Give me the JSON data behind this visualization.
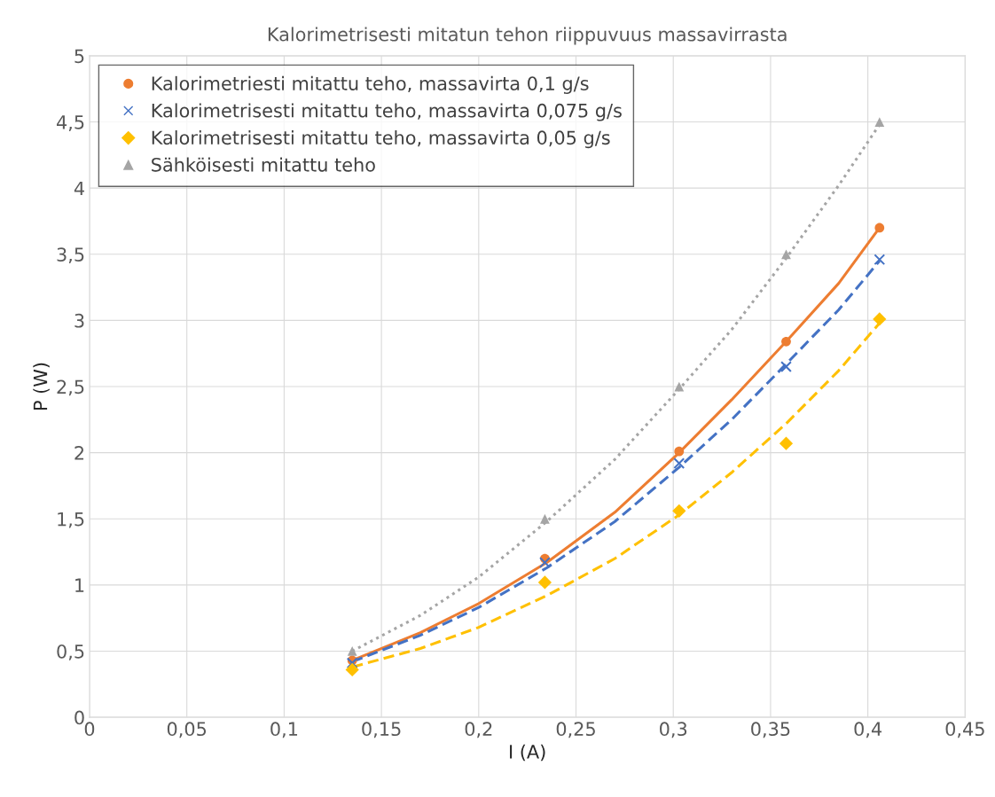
{
  "chart_data": {
    "type": "scatter",
    "title": "Kalorimetrisesti mitatun tehon riippuvuus massavirrasta",
    "xlabel": "I (A)",
    "ylabel": "P (W)",
    "x": [
      0.135,
      0.234,
      0.303,
      0.358,
      0.406
    ],
    "series": [
      {
        "name": "Kalorimetriesti mitattu teho, massavirta 0,1 g/s",
        "color": "#ed7d31",
        "marker": "circle",
        "values": [
          0.43,
          1.2,
          2.01,
          2.84,
          3.7
        ]
      },
      {
        "name": "Kalorimetrisesti mitattu teho, massavirta 0,075 g/s",
        "color": "#4472c4",
        "marker": "cross",
        "values": [
          0.41,
          1.17,
          1.92,
          2.65,
          3.46
        ]
      },
      {
        "name": "Kalorimetrisesti mitattu teho, massavirta 0,05 g/s",
        "color": "#ffc000",
        "marker": "diamond",
        "values": [
          0.36,
          1.02,
          1.56,
          2.07,
          3.01
        ]
      },
      {
        "name": "Sähköisesti mitattu teho",
        "color": "#a5a5a5",
        "marker": "triangle",
        "values": [
          0.5,
          1.5,
          2.5,
          3.5,
          4.5
        ]
      },
      {
        "type": "line",
        "color": "#ed7d31",
        "line_style": "solid",
        "x": [
          0.135,
          0.17,
          0.2,
          0.235,
          0.27,
          0.303,
          0.33,
          0.358,
          0.385,
          0.406
        ],
        "values": [
          0.43,
          0.64,
          0.86,
          1.17,
          1.55,
          2.0,
          2.4,
          2.84,
          3.28,
          3.7
        ]
      },
      {
        "type": "line",
        "color": "#4472c4",
        "line_style": "dashed",
        "x": [
          0.135,
          0.17,
          0.2,
          0.235,
          0.27,
          0.303,
          0.33,
          0.358,
          0.385,
          0.406
        ],
        "values": [
          0.42,
          0.62,
          0.83,
          1.13,
          1.48,
          1.89,
          2.25,
          2.67,
          3.08,
          3.45
        ]
      },
      {
        "type": "line",
        "color": "#ffc000",
        "line_style": "dashed",
        "x": [
          0.135,
          0.17,
          0.2,
          0.235,
          0.27,
          0.303,
          0.33,
          0.358,
          0.385,
          0.406
        ],
        "values": [
          0.38,
          0.52,
          0.68,
          0.92,
          1.2,
          1.53,
          1.85,
          2.22,
          2.62,
          2.98
        ]
      },
      {
        "type": "line",
        "color": "#a5a5a5",
        "line_style": "dotted",
        "x": [
          0.135,
          0.17,
          0.2,
          0.235,
          0.27,
          0.303,
          0.33,
          0.358,
          0.385,
          0.406
        ],
        "values": [
          0.5,
          0.77,
          1.06,
          1.48,
          1.95,
          2.48,
          2.93,
          3.47,
          4.02,
          4.48
        ]
      }
    ],
    "xlim": [
      0,
      0.45
    ],
    "ylim": [
      0,
      5
    ],
    "xticks": [
      0,
      {
        "value": 0.05,
        "label": "0,05"
      },
      {
        "value": 0.1,
        "label": "0,1"
      },
      {
        "value": 0.15,
        "label": "0,15"
      },
      {
        "value": 0.2,
        "label": "0,2"
      },
      {
        "value": 0.25,
        "label": "0,25"
      },
      {
        "value": 0.3,
        "label": "0,3"
      },
      {
        "value": 0.35,
        "label": "0,35"
      },
      {
        "value": 0.4,
        "label": "0,4"
      },
      {
        "value": 0.45,
        "label": "0,45"
      }
    ],
    "yticks": [
      0,
      {
        "value": 0.5,
        "label": "0,5"
      },
      1,
      {
        "value": 1.5,
        "label": "1,5"
      },
      2,
      {
        "value": 2.5,
        "label": "2,5"
      },
      3,
      {
        "value": 3.5,
        "label": "3,5"
      },
      4,
      {
        "value": 4.5,
        "label": "4,5"
      },
      5
    ],
    "grid": true,
    "legend": "top left"
  }
}
